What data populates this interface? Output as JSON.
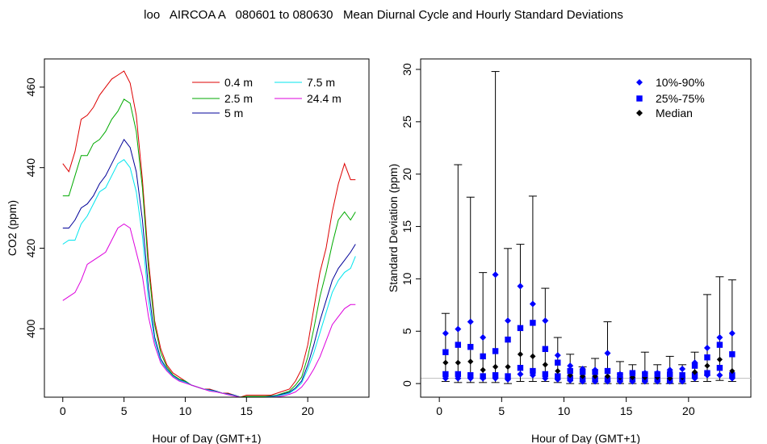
{
  "title": "loo   AIRCOA A   080601 to 080630   Mean Diurnal Cycle and Hourly Standard Deviations",
  "chart_data": [
    {
      "type": "line",
      "xlabel": "Hour of Day (GMT+1)",
      "ylabel": "CO2 (ppm)",
      "xlim": [
        -1.5,
        25
      ],
      "ylim": [
        383,
        467
      ],
      "xticks": [
        0,
        5,
        10,
        15,
        20
      ],
      "yticks": [
        400,
        420,
        440,
        460
      ],
      "legend_position": "top-right",
      "series": [
        {
          "name": "0.4 m",
          "color": "#dd0000",
          "x": [
            0,
            0.5,
            1,
            1.5,
            2,
            2.5,
            3,
            3.5,
            4,
            4.5,
            5,
            5.5,
            6,
            6.5,
            7,
            7.5,
            8,
            8.5,
            9,
            9.5,
            10,
            10.5,
            11,
            11.5,
            12,
            12.5,
            13,
            13.5,
            14,
            14.5,
            15,
            15.5,
            16,
            16.5,
            17,
            17.5,
            18,
            18.5,
            19,
            19.5,
            20,
            20.5,
            21,
            21.5,
            22,
            22.5,
            23,
            23.5,
            23.9
          ],
          "y": [
            441,
            439,
            444,
            452,
            453,
            455,
            458,
            460,
            462,
            463,
            464,
            461,
            453,
            437,
            417,
            402,
            395,
            391,
            389,
            388,
            387,
            386,
            385.5,
            385,
            385,
            384.5,
            384,
            384,
            383.5,
            383,
            383.5,
            383.5,
            383.5,
            383.5,
            383.5,
            384,
            384.5,
            385,
            387,
            390,
            396,
            405,
            414,
            420,
            429,
            436,
            441,
            437,
            437
          ]
        },
        {
          "name": "2.5 m",
          "color": "#00aa00",
          "x": [
            0,
            0.5,
            1,
            1.5,
            2,
            2.5,
            3,
            3.5,
            4,
            4.5,
            5,
            5.5,
            6,
            6.5,
            7,
            7.5,
            8,
            8.5,
            9,
            9.5,
            10,
            10.5,
            11,
            11.5,
            12,
            12.5,
            13,
            13.5,
            14,
            14.5,
            15,
            15.5,
            16,
            16.5,
            17,
            17.5,
            18,
            18.5,
            19,
            19.5,
            20,
            20.5,
            21,
            21.5,
            22,
            22.5,
            23,
            23.5,
            23.9
          ],
          "y": [
            433,
            433,
            438,
            443,
            443,
            446,
            447,
            449,
            452,
            454,
            457,
            456,
            449,
            435,
            415,
            401,
            394,
            390.5,
            388.5,
            387.5,
            387,
            386,
            385.5,
            385,
            384.8,
            384.5,
            384,
            383.8,
            383.5,
            383,
            383.2,
            383.2,
            383.2,
            383.2,
            383.3,
            383.5,
            384,
            384.5,
            386,
            388,
            393,
            400,
            408,
            414,
            421,
            427,
            429,
            427,
            429
          ]
        },
        {
          "name": "5 m",
          "color": "#000099",
          "x": [
            0,
            0.5,
            1,
            1.5,
            2,
            2.5,
            3,
            3.5,
            4,
            4.5,
            5,
            5.5,
            6,
            6.5,
            7,
            7.5,
            8,
            8.5,
            9,
            9.5,
            10,
            10.5,
            11,
            11.5,
            12,
            12.5,
            13,
            13.5,
            14,
            14.5,
            15,
            15.5,
            16,
            16.5,
            17,
            17.5,
            18,
            18.5,
            19,
            19.5,
            20,
            20.5,
            21,
            21.5,
            22,
            22.5,
            23,
            23.5,
            23.9
          ],
          "y": [
            425,
            425,
            427,
            430,
            431,
            433,
            436,
            438,
            441,
            444,
            447,
            445,
            439,
            427,
            410,
            398,
            392.5,
            390,
            388.3,
            387.3,
            386.8,
            386,
            385.5,
            385,
            384.8,
            384.5,
            384,
            383.8,
            383.5,
            383,
            383,
            383,
            383,
            383,
            383.2,
            383.4,
            383.8,
            384.2,
            385.3,
            387,
            391,
            396,
            402,
            407,
            412,
            415,
            417,
            419,
            421
          ]
        },
        {
          "name": "7.5 m",
          "color": "#00e5ee",
          "x": [
            0,
            0.5,
            1,
            1.5,
            2,
            2.5,
            3,
            3.5,
            4,
            4.5,
            5,
            5.5,
            6,
            6.5,
            7,
            7.5,
            8,
            8.5,
            9,
            9.5,
            10,
            10.5,
            11,
            11.5,
            12,
            12.5,
            13,
            13.5,
            14,
            14.5,
            15,
            15.5,
            16,
            16.5,
            17,
            17.5,
            18,
            18.5,
            19,
            19.5,
            20,
            20.5,
            21,
            21.5,
            22,
            22.5,
            23,
            23.5,
            23.9
          ],
          "y": [
            421,
            422,
            422,
            426,
            428,
            431,
            434,
            435,
            438,
            441,
            442,
            440,
            434,
            423,
            407,
            397,
            392,
            389.8,
            388.2,
            387.2,
            386.7,
            386,
            385.5,
            385,
            384.7,
            384.4,
            384,
            383.7,
            383.4,
            383,
            383,
            383,
            383,
            383,
            383.1,
            383.3,
            383.6,
            384,
            385,
            386.5,
            390,
            394,
            399,
            404,
            409,
            412,
            414,
            415,
            418
          ]
        },
        {
          "name": "24.4 m",
          "color": "#dd00dd",
          "x": [
            0,
            0.5,
            1,
            1.5,
            2,
            2.5,
            3,
            3.5,
            4,
            4.5,
            5,
            5.5,
            6,
            6.5,
            7,
            7.5,
            8,
            8.5,
            9,
            9.5,
            10,
            10.5,
            11,
            11.5,
            12,
            12.5,
            13,
            13.5,
            14,
            14.5,
            15,
            15.5,
            16,
            16.5,
            17,
            17.5,
            18,
            18.5,
            19,
            19.5,
            20,
            20.5,
            21,
            21.5,
            22,
            22.5,
            23,
            23.5,
            23.9
          ],
          "y": [
            407,
            408,
            409,
            412,
            416,
            417,
            418,
            419,
            422,
            425,
            426,
            425,
            419,
            413,
            403,
            396,
            391.5,
            389.5,
            388,
            387,
            386.5,
            386,
            385.5,
            385,
            384.5,
            384.3,
            384,
            383.6,
            383.3,
            383,
            383,
            383,
            383,
            383,
            383,
            383.1,
            383.3,
            383.7,
            384.3,
            385.5,
            387.5,
            390,
            393,
            397,
            401,
            403,
            405,
            406,
            406
          ]
        }
      ]
    },
    {
      "type": "scatter",
      "xlabel": "Hour of Day (GMT+1)",
      "ylabel": "Standard Deviation (ppm)",
      "xlim": [
        -1.5,
        25
      ],
      "ylim": [
        -1.3,
        31
      ],
      "xticks": [
        0,
        5,
        10,
        15,
        20
      ],
      "yticks": [
        0,
        5,
        10,
        15,
        20,
        25,
        30
      ],
      "legend_position": "top-right",
      "legend": [
        {
          "label": "10%-90%",
          "marker": "diamond",
          "color": "#0000ff"
        },
        {
          "label": "25%-75%",
          "marker": "square",
          "color": "#0000ff"
        },
        {
          "label": "Median",
          "marker": "diamond",
          "color": "#000000"
        }
      ],
      "hours": [
        0.5,
        1.5,
        2.5,
        3.5,
        4.5,
        5.5,
        6.5,
        7.5,
        8.5,
        9.5,
        10.5,
        11.5,
        12.5,
        13.5,
        14.5,
        15.5,
        16.5,
        17.5,
        18.5,
        19.5,
        20.5,
        21.5,
        22.5,
        23.5
      ],
      "p10": [
        0.5,
        0.5,
        0.5,
        0.5,
        0.5,
        0.4,
        0.9,
        0.8,
        0.5,
        0.4,
        0.3,
        0.2,
        0.2,
        0.2,
        0.2,
        0.2,
        0.2,
        0.2,
        0.2,
        0.2,
        0.5,
        0.8,
        0.8,
        0.5
      ],
      "p25": [
        0.9,
        0.9,
        0.8,
        0.7,
        0.8,
        0.7,
        1.5,
        1.2,
        0.9,
        0.7,
        0.5,
        0.4,
        0.4,
        0.4,
        0.4,
        0.4,
        0.4,
        0.4,
        0.3,
        0.4,
        0.8,
        1.0,
        1.5,
        0.8
      ],
      "median": [
        2.0,
        2.0,
        2.1,
        1.3,
        1.6,
        1.6,
        2.8,
        2.6,
        1.8,
        1.2,
        0.8,
        0.7,
        0.7,
        0.7,
        0.6,
        0.6,
        0.6,
        0.6,
        0.5,
        0.6,
        1.1,
        1.7,
        2.3,
        1.2
      ],
      "p75": [
        3.0,
        3.7,
        3.5,
        2.6,
        3.1,
        4.2,
        5.3,
        5.8,
        3.3,
        2.0,
        1.2,
        1.1,
        1.1,
        1.2,
        0.8,
        1.0,
        0.9,
        0.9,
        0.9,
        0.8,
        1.7,
        2.5,
        3.7,
        2.8
      ],
      "p90": [
        4.8,
        5.2,
        5.9,
        4.4,
        10.4,
        6.0,
        9.3,
        7.6,
        6.0,
        2.7,
        1.7,
        1.4,
        1.3,
        2.9,
        0.9,
        1.0,
        1.0,
        1.0,
        1.3,
        1.4,
        2.0,
        3.4,
        4.4,
        4.8
      ],
      "max": [
        6.7,
        20.9,
        17.8,
        10.6,
        29.8,
        12.9,
        13.3,
        17.9,
        9.1,
        4.4,
        2.8,
        1.6,
        2.4,
        5.9,
        2.1,
        1.8,
        3.0,
        1.8,
        2.6,
        1.8,
        3.0,
        8.5,
        10.2,
        9.9
      ],
      "min": [
        0.2,
        0.1,
        0.1,
        0.1,
        0.1,
        0.0,
        0.2,
        0.2,
        0.2,
        0.1,
        0.0,
        0.0,
        0.0,
        0.0,
        0.0,
        0.0,
        0.0,
        0.0,
        0.0,
        0.0,
        0.2,
        0.2,
        0.3,
        0.2
      ],
      "reference_line": 0.5
    }
  ]
}
